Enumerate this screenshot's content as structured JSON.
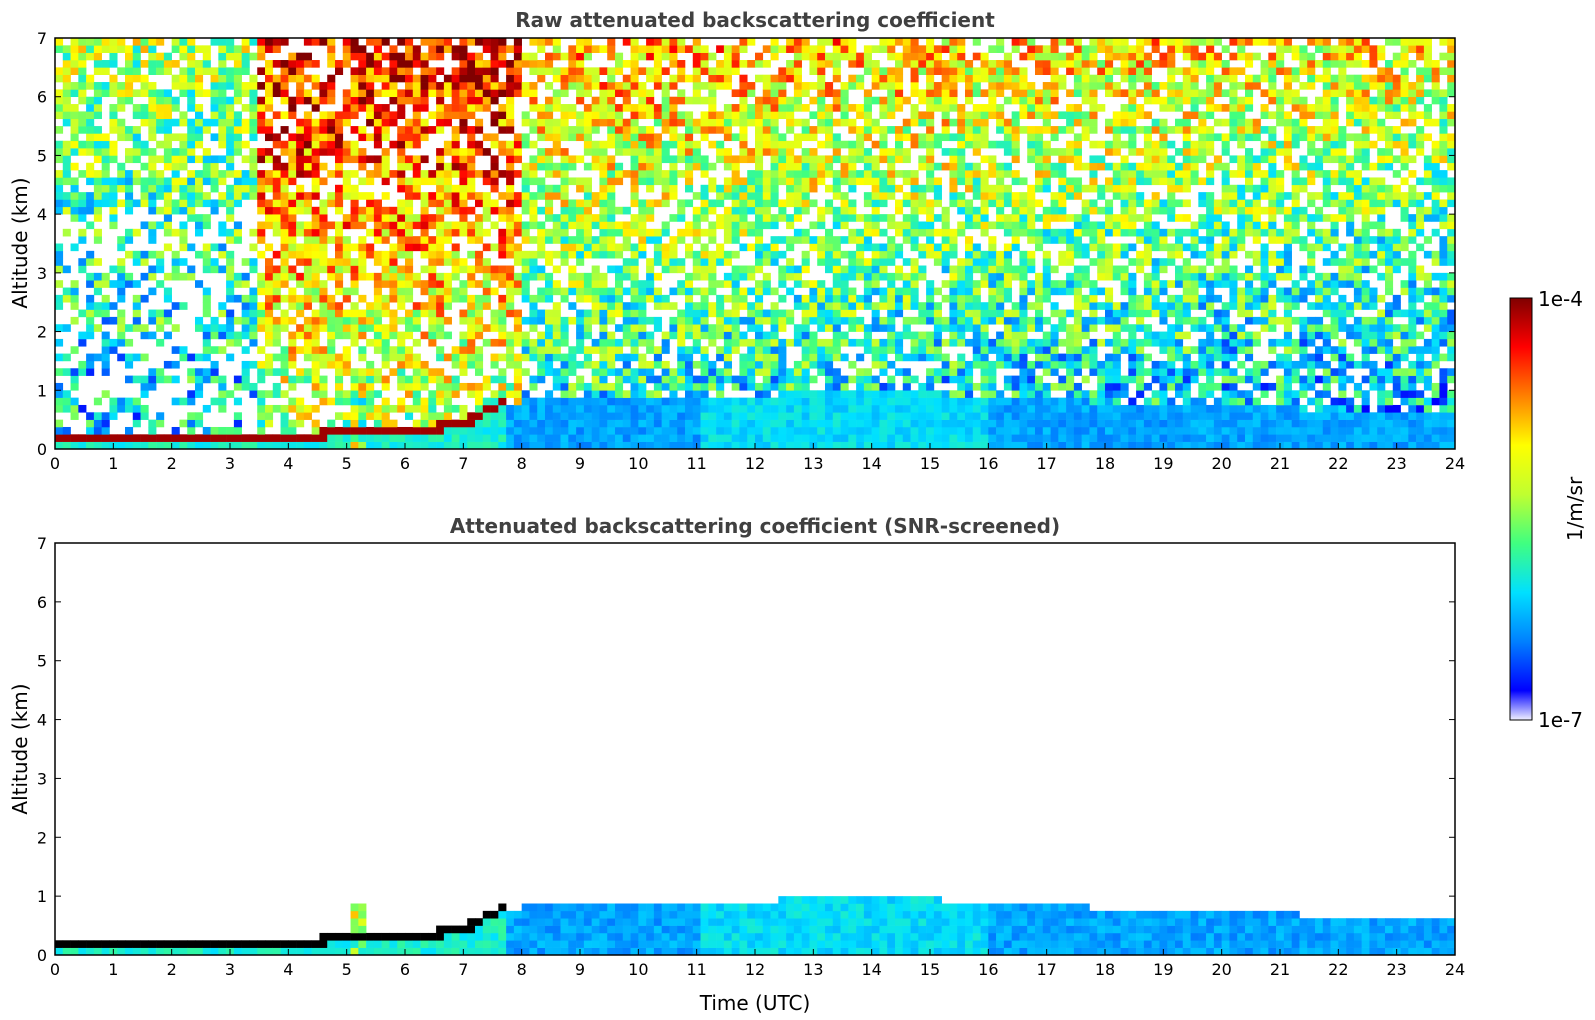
{
  "chart_data": {
    "type": "heatmap",
    "x_ticks": [
      0,
      1,
      2,
      3,
      4,
      5,
      6,
      7,
      8,
      9,
      10,
      11,
      12,
      13,
      14,
      15,
      16,
      17,
      18,
      19,
      20,
      21,
      22,
      23,
      24
    ],
    "y_ticks": [
      0,
      1,
      2,
      3,
      4,
      5,
      6,
      7
    ],
    "xlim": [
      0,
      24
    ],
    "ylim": [
      0,
      7
    ],
    "xlabel": "Time (UTC)",
    "panels": [
      {
        "title": "Raw attenuated backscattering coefficient",
        "ylabel": "Altitude (km)",
        "screened": false
      },
      {
        "title": "Attenuated backscattering coefficient (SNR-screened)",
        "ylabel": "Altitude (km)",
        "screened": true
      }
    ],
    "colorbar": {
      "label": "1/m/sr",
      "max_label": "1e-4",
      "min_label": "1e-7",
      "scale": "log",
      "range": [
        1e-07,
        0.0001
      ],
      "colormap": [
        "#0000ff",
        "#0080ff",
        "#00e0ff",
        "#40ff80",
        "#c0ff30",
        "#ffff00",
        "#ff8000",
        "#ff0000",
        "#800000"
      ]
    },
    "features": {
      "surface_layer_top_km": [
        [
          0,
          0.15
        ],
        [
          2,
          0.15
        ],
        [
          4,
          0.2
        ],
        [
          5,
          0.3
        ],
        [
          6,
          0.3
        ],
        [
          7,
          0.45
        ],
        [
          7.7,
          0.8
        ],
        [
          9,
          0.85
        ],
        [
          12,
          0.9
        ],
        [
          13,
          1.0
        ],
        [
          15,
          0.95
        ],
        [
          18,
          0.8
        ],
        [
          21,
          0.7
        ],
        [
          24,
          0.6
        ]
      ],
      "data_gap_time": 11.45
    }
  }
}
